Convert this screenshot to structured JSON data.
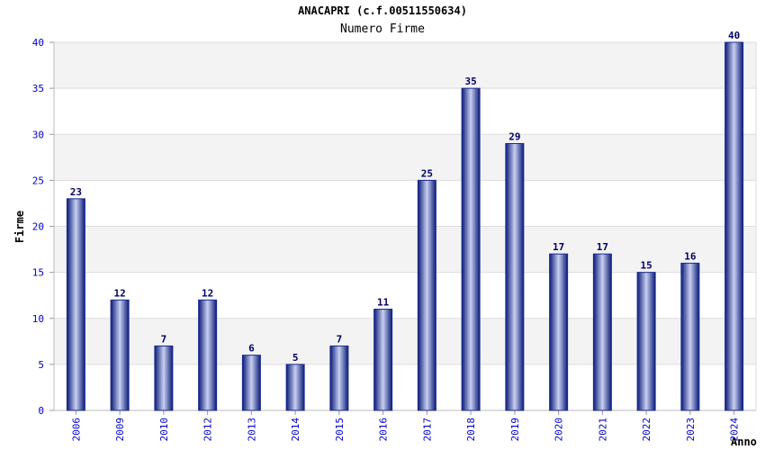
{
  "chart_data": {
    "type": "bar",
    "title": "ANACAPRI (c.f.00511550634)",
    "subtitle": "Numero Firme",
    "xlabel": "Anno",
    "ylabel": "Firme",
    "categories": [
      "2006",
      "2009",
      "2010",
      "2012",
      "2013",
      "2014",
      "2015",
      "2016",
      "2017",
      "2018",
      "2019",
      "2020",
      "2021",
      "2022",
      "2023",
      "2024"
    ],
    "values": [
      23,
      12,
      7,
      12,
      6,
      5,
      7,
      11,
      25,
      35,
      29,
      17,
      17,
      15,
      16,
      40
    ],
    "ylim": [
      0,
      40
    ],
    "yticks": [
      0,
      5,
      10,
      15,
      20,
      25,
      30,
      35,
      40
    ],
    "grid": true,
    "colors": {
      "bar": "#1a2a8f",
      "tick_label": "#0000cc",
      "value_label": "#000066",
      "band": "#f3f3f3",
      "grid": "#dddddd"
    }
  }
}
